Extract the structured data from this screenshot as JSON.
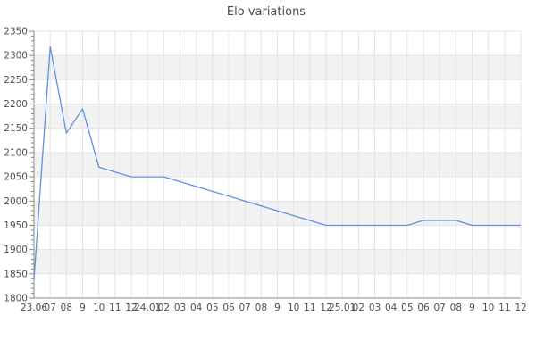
{
  "chart_data": {
    "type": "line",
    "title": "Elo variations",
    "x_labels": [
      "23.06",
      "07",
      "08",
      "9",
      "10",
      "11",
      "12",
      "24.01",
      "02",
      "03",
      "04",
      "05",
      "06",
      "07",
      "08",
      "9",
      "10",
      "11",
      "12",
      "25.01",
      "02",
      "03",
      "04",
      "05",
      "06",
      "07",
      "08",
      "9",
      "10",
      "11",
      "12"
    ],
    "values": [
      1838,
      2318,
      2140,
      2190,
      2070,
      2060,
      2050,
      2050,
      2050,
      2040,
      2030,
      2020,
      2010,
      2000,
      1990,
      1980,
      1970,
      1960,
      1950,
      1950,
      1950,
      1950,
      1950,
      1950,
      1960,
      1960,
      1960,
      1950,
      1950,
      1950,
      1950
    ],
    "xlabel": "",
    "ylabel": "",
    "ylim": [
      1800,
      2350
    ],
    "y_major_step": 50,
    "y_minor_step": 10,
    "y_tick_labels": [
      "1800",
      "1850",
      "1900",
      "1950",
      "2000",
      "2050",
      "2100",
      "2150",
      "2200",
      "2250",
      "2300",
      "2350"
    ],
    "grid": "on",
    "legend": "none",
    "colors": {
      "line": "#6290e0",
      "band": "#f2f2f2",
      "gridline": "#e4e4e4",
      "axis": "#888888",
      "tick_label": "#4f4f4f",
      "title": "#4a4a4a",
      "background": "#ffffff"
    }
  }
}
